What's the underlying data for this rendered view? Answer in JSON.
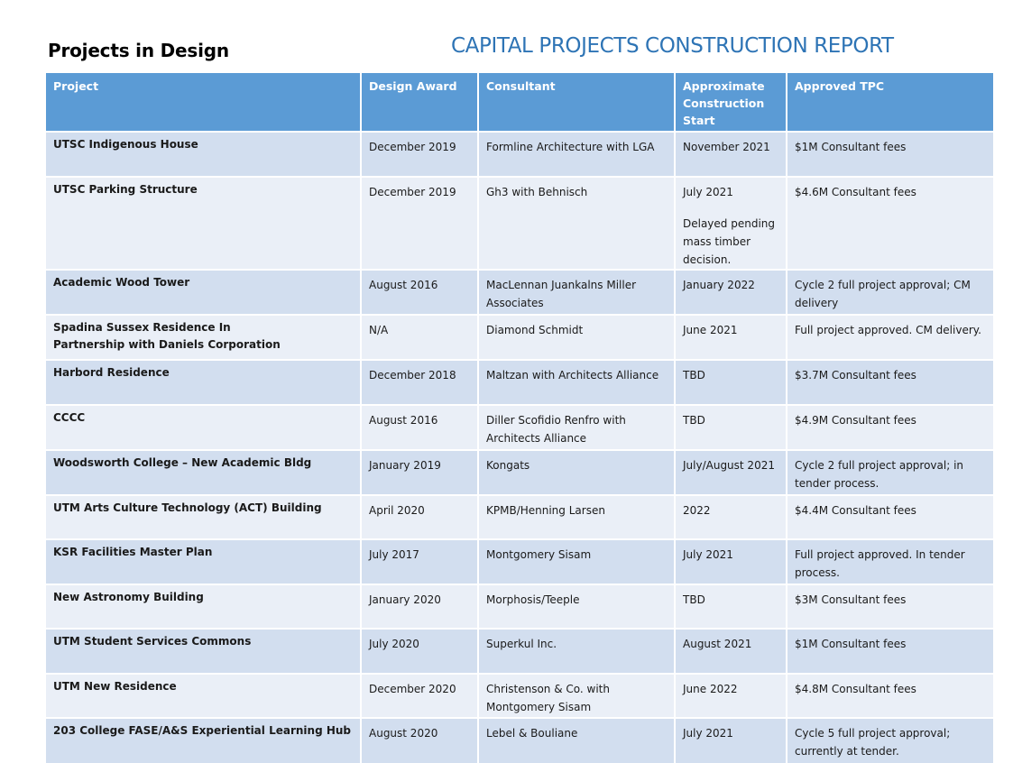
{
  "header": {
    "heading": "Projects in Design",
    "report_title": "CAPITAL PROJECTS CONSTRUCTION REPORT"
  },
  "table": {
    "columns": {
      "project": "Project",
      "design_award": "Design Award",
      "consultant": "Consultant",
      "start_line1": "Approximate",
      "start_line2": "Construction",
      "start_line3": "Start",
      "tpc": "Approved TPC"
    },
    "rows": [
      {
        "project": "UTSC Indigenous House",
        "design_award": "December 2019",
        "consultant": "Formline Architecture with LGA",
        "start": "November 2021",
        "tpc": "$1M Consultant fees"
      },
      {
        "project": "UTSC Parking Structure",
        "design_award": "December 2019",
        "consultant": "Gh3 with Behnisch",
        "start": "July 2021",
        "start_note": "Delayed pending mass timber decision.",
        "tpc": "$4.6M Consultant fees"
      },
      {
        "project": "Academic Wood Tower",
        "design_award": "August 2016",
        "consultant": "MacLennan Juankalns Miller Associates",
        "start": "January 2022",
        "tpc": "Cycle 2 full project approval; CM delivery"
      },
      {
        "project_line1": "Spadina Sussex Residence In",
        "project_line2": "Partnership with Daniels Corporation",
        "design_award": "N/A",
        "consultant": "Diamond Schmidt",
        "start": "June 2021",
        "tpc": "Full project approved.  CM delivery."
      },
      {
        "project": "Harbord Residence",
        "design_award": "December 2018",
        "consultant": "Maltzan with Architects Alliance",
        "start": "TBD",
        "tpc": "$3.7M Consultant fees"
      },
      {
        "project": "CCCC",
        "design_award": "August 2016",
        "consultant": "Diller Scofidio Renfro with Architects Alliance",
        "start": "TBD",
        "tpc": "$4.9M Consultant fees"
      },
      {
        "project": "Woodsworth College – New Academic Bldg",
        "design_award": "January 2019",
        "consultant": "Kongats",
        "start": "July/August 2021",
        "tpc": "Cycle 2 full project approval; in tender process."
      },
      {
        "project": "UTM Arts Culture Technology (ACT) Building",
        "design_award": "April 2020",
        "consultant": "KPMB/Henning Larsen",
        "start": "2022",
        "tpc": "$4.4M Consultant fees"
      },
      {
        "project": "KSR Facilities Master Plan",
        "design_award": "July 2017",
        "consultant": "Montgomery Sisam",
        "start": "July 2021",
        "tpc": "Full project approved. In tender process."
      },
      {
        "project": "New Astronomy Building",
        "design_award": "January 2020",
        "consultant": "Morphosis/Teeple",
        "start": "TBD",
        "tpc": "$3M Consultant fees"
      },
      {
        "project": "UTM Student Services Commons",
        "design_award": "July 2020",
        "consultant": "Superkul Inc.",
        "start": "August 2021",
        "tpc": "$1M Consultant fees"
      },
      {
        "project": "UTM New Residence",
        "design_award": "December  2020",
        "consultant": "Christenson & Co. with Montgomery Sisam",
        "start": "June 2022",
        "tpc": "$4.8M Consultant fees"
      },
      {
        "project": "203 College FASE/A&S Experiential Learning Hub",
        "design_award": "August 2020",
        "consultant": "Lebel & Bouliane",
        "start": "July 2021",
        "tpc": "Cycle 5 full project approval; currently at tender."
      }
    ]
  }
}
